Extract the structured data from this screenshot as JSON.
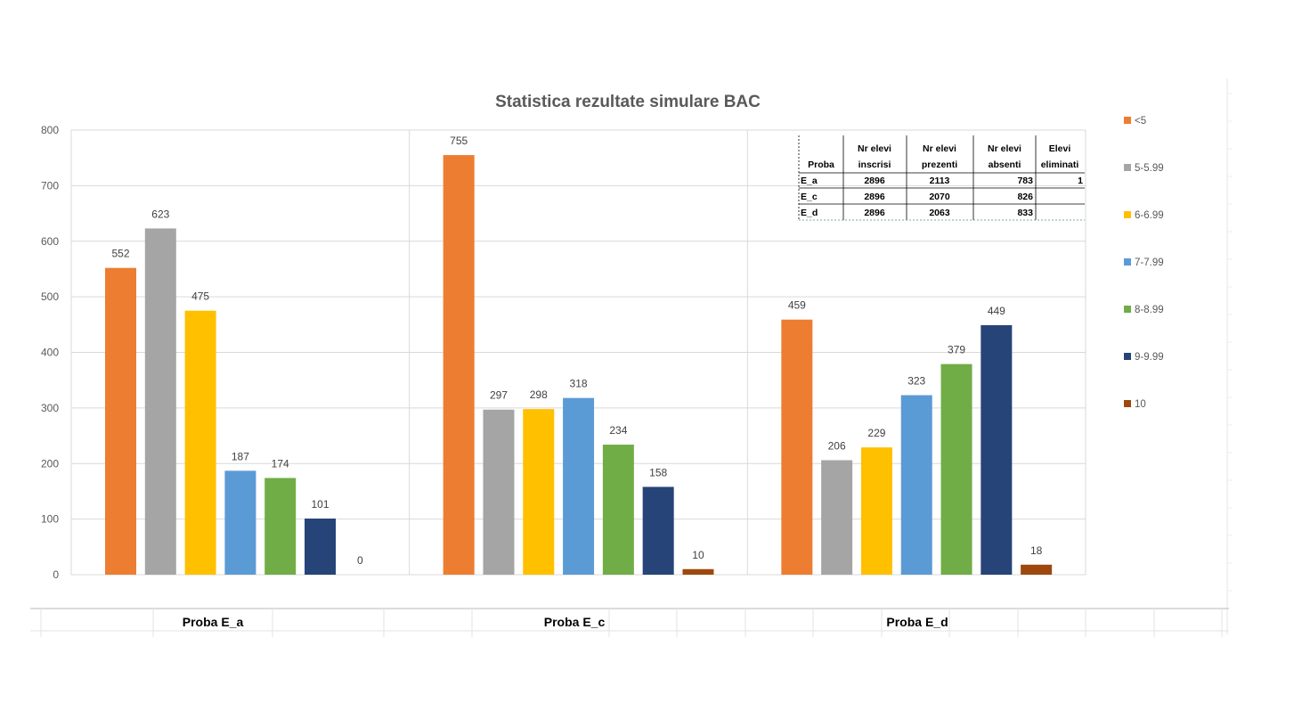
{
  "chart_data": {
    "type": "bar",
    "title": "Statistica rezultate simulare BAC",
    "categories": [
      "Proba E_a",
      "Proba E_c",
      "Proba E_d"
    ],
    "series": [
      {
        "name": "<5",
        "color": "#ED7D31",
        "values": [
          552,
          755,
          459
        ]
      },
      {
        "name": "5-5.99",
        "color": "#A5A5A5",
        "values": [
          623,
          297,
          206
        ]
      },
      {
        "name": "6-6.99",
        "color": "#FFC000",
        "values": [
          475,
          298,
          229
        ]
      },
      {
        "name": "7-7.99",
        "color": "#5B9BD5",
        "values": [
          187,
          318,
          323
        ]
      },
      {
        "name": "8-8.99",
        "color": "#70AD47",
        "values": [
          174,
          234,
          379
        ]
      },
      {
        "name": "9-9.99",
        "color": "#264478",
        "values": [
          101,
          158,
          449
        ]
      },
      {
        "name": "10",
        "color": "#9E480E",
        "values": [
          0,
          10,
          18
        ]
      }
    ],
    "ylim": [
      0,
      800
    ],
    "yticks": [
      0,
      100,
      200,
      300,
      400,
      500,
      600,
      700,
      800
    ],
    "legend_position": "right",
    "grid": true
  },
  "summary_table": {
    "headers": [
      [
        "",
        "Nr elevi",
        "Nr elevi",
        "Nr elevi",
        "Elevi"
      ],
      [
        "Proba",
        "inscrisi",
        "prezenti",
        "absenti",
        "eliminati"
      ]
    ],
    "rows": [
      [
        "E_a",
        "2896",
        "2113",
        "783",
        "1"
      ],
      [
        "E_c",
        "2896",
        "2070",
        "826",
        ""
      ],
      [
        "E_d",
        "2896",
        "2063",
        "833",
        ""
      ]
    ]
  }
}
